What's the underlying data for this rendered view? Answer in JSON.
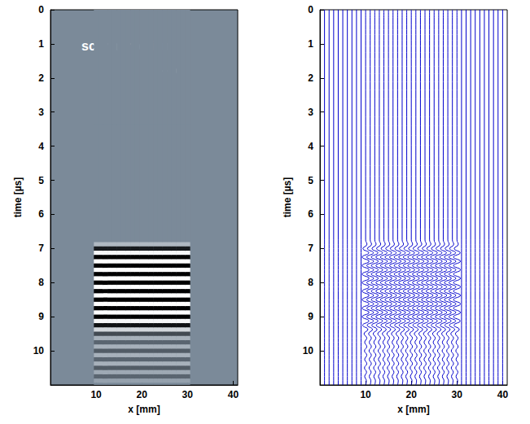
{
  "chart_data": [
    {
      "type": "heatmap",
      "xlabel": "x [mm]",
      "ylabel": "time [µs]",
      "xlim": [
        0,
        41
      ],
      "xticks": [
        10,
        20,
        30,
        40
      ],
      "ylim": [
        0,
        11
      ],
      "yticks": [
        0,
        1,
        2,
        3,
        4,
        5,
        6,
        7,
        8,
        9,
        10
      ],
      "colors": [
        "#000000",
        "#7b8a99",
        "#ffffff"
      ],
      "amplitude_range": [
        -0.75,
        0.75
      ],
      "annotation": "scan direction"
    },
    {
      "type": "wiggle",
      "xlabel": "x [mm]",
      "ylabel": "time [µs]",
      "xlim": [
        0,
        41
      ],
      "xticks": [
        10,
        20,
        30,
        40
      ],
      "ylim": [
        0,
        11
      ],
      "yticks": [
        0,
        1,
        2,
        3,
        4,
        5,
        6,
        7,
        8,
        9,
        10
      ],
      "color": "#0000cc"
    }
  ],
  "scan_x": [
    1,
    2,
    3,
    4,
    5,
    6,
    7,
    8,
    9,
    10,
    11,
    12,
    13,
    14,
    15,
    16,
    17,
    18,
    19,
    20,
    21,
    22,
    23,
    24,
    25,
    26,
    27,
    28,
    29,
    30,
    31,
    32,
    33,
    34,
    35,
    36,
    37,
    38,
    39,
    40
  ],
  "signal_x": [
    10,
    11,
    12,
    13,
    14,
    15,
    16,
    17,
    18,
    19,
    20,
    21,
    22,
    23,
    24,
    25,
    26,
    27,
    28,
    29,
    30
  ],
  "waveform": {
    "time": [
      0,
      6.75,
      6.875,
      7.0,
      7.125,
      7.25,
      7.375,
      7.5,
      7.625,
      7.75,
      7.875,
      8.0,
      8.125,
      8.25,
      8.375,
      8.5,
      8.625,
      8.75,
      8.875,
      9.0,
      9.125,
      9.25,
      9.375,
      9.5,
      9.625,
      9.75,
      9.875,
      10.0,
      10.125,
      10.25,
      10.375,
      10.5,
      10.625,
      10.75,
      10.875,
      11.0
    ],
    "amplitude": [
      0,
      0,
      0.3,
      -0.6,
      0.7,
      -0.75,
      0.75,
      -0.75,
      0.75,
      -0.75,
      0.75,
      -0.75,
      0.75,
      -0.75,
      0.75,
      -0.75,
      0.75,
      -0.75,
      0.75,
      -0.75,
      0.7,
      -0.65,
      0.5,
      -0.35,
      0.25,
      -0.2,
      0.25,
      -0.25,
      0.25,
      -0.2,
      0.25,
      -0.25,
      0.2,
      -0.2,
      0.15,
      0
    ]
  }
}
